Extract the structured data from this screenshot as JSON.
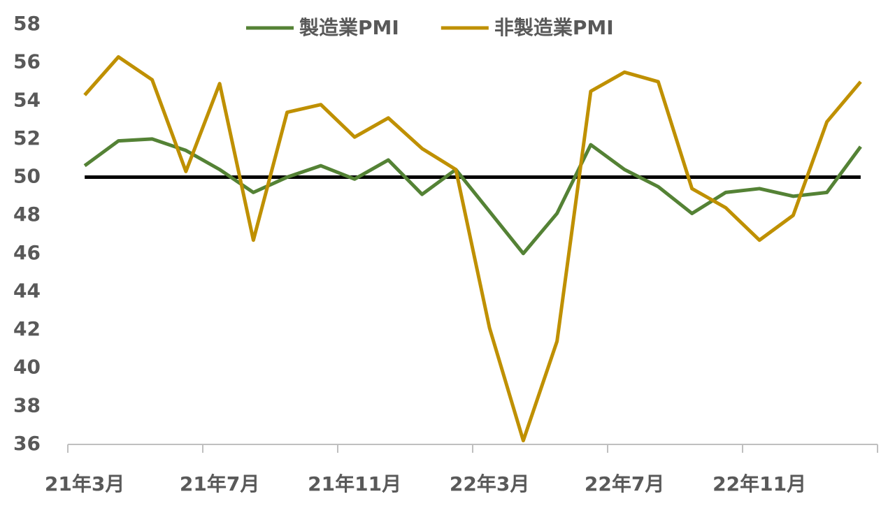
{
  "chart_data": {
    "type": "line",
    "categories": [
      "21年3月",
      null,
      null,
      null,
      "21年7月",
      null,
      null,
      null,
      "21年11月",
      null,
      null,
      null,
      "22年3月",
      null,
      null,
      null,
      "22年7月",
      null,
      null,
      null,
      "22年11月",
      null,
      null,
      null
    ],
    "series": [
      {
        "name": "製造業PMI",
        "color": "#548235",
        "values": [
          50.6,
          51.9,
          52.0,
          51.4,
          50.4,
          49.2,
          50.0,
          50.6,
          49.9,
          50.9,
          49.1,
          50.4,
          48.2,
          46.0,
          48.1,
          51.7,
          50.4,
          49.5,
          48.1,
          49.2,
          49.4,
          49.0,
          49.2,
          51.6
        ]
      },
      {
        "name": "非製造業PMI",
        "color": "#bf9000",
        "values": [
          54.3,
          56.3,
          55.1,
          50.3,
          54.9,
          46.7,
          53.4,
          53.8,
          52.1,
          53.1,
          51.5,
          50.4,
          42.1,
          36.2,
          41.4,
          54.5,
          55.5,
          55.0,
          49.4,
          48.4,
          46.7,
          48.0,
          52.9,
          55.0
        ]
      }
    ],
    "reference_line": {
      "value": 50,
      "color": "#000000"
    },
    "ylim": [
      36,
      58
    ],
    "yticks": [
      36,
      38,
      40,
      42,
      44,
      46,
      48,
      50,
      52,
      54,
      56,
      58
    ],
    "legend": "top"
  }
}
